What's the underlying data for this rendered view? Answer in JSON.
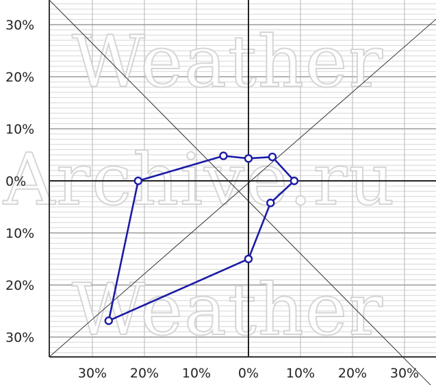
{
  "chart_data": {
    "type": "radar",
    "title": "",
    "xlim": [
      -38,
      36
    ],
    "ylim": [
      -35,
      34
    ],
    "x_tick_labels": [
      "30%",
      "20%",
      "10%",
      "0%",
      "10%",
      "20%",
      "30%"
    ],
    "y_tick_labels": [
      "30%",
      "20%",
      "10%",
      "0%",
      "10%",
      "20%",
      "30%"
    ],
    "grid": true,
    "minor_grid_step": 1,
    "major_grid_step": 10,
    "series": [
      {
        "color": "#1a1aa6",
        "points": [
          {
            "direction": "N",
            "value": 4.3
          },
          {
            "direction": "NE",
            "value": 6.5
          },
          {
            "direction": "E",
            "value": 8.8
          },
          {
            "direction": "SE",
            "value": 6.0
          },
          {
            "direction": "S",
            "value": 15.0
          },
          {
            "direction": "SW",
            "value": 38.0
          },
          {
            "direction": "W",
            "value": 21.2
          },
          {
            "direction": "NW",
            "value": 6.8
          }
        ]
      }
    ],
    "watermark": [
      "Weather",
      "Archive.ru",
      "Weather"
    ]
  }
}
